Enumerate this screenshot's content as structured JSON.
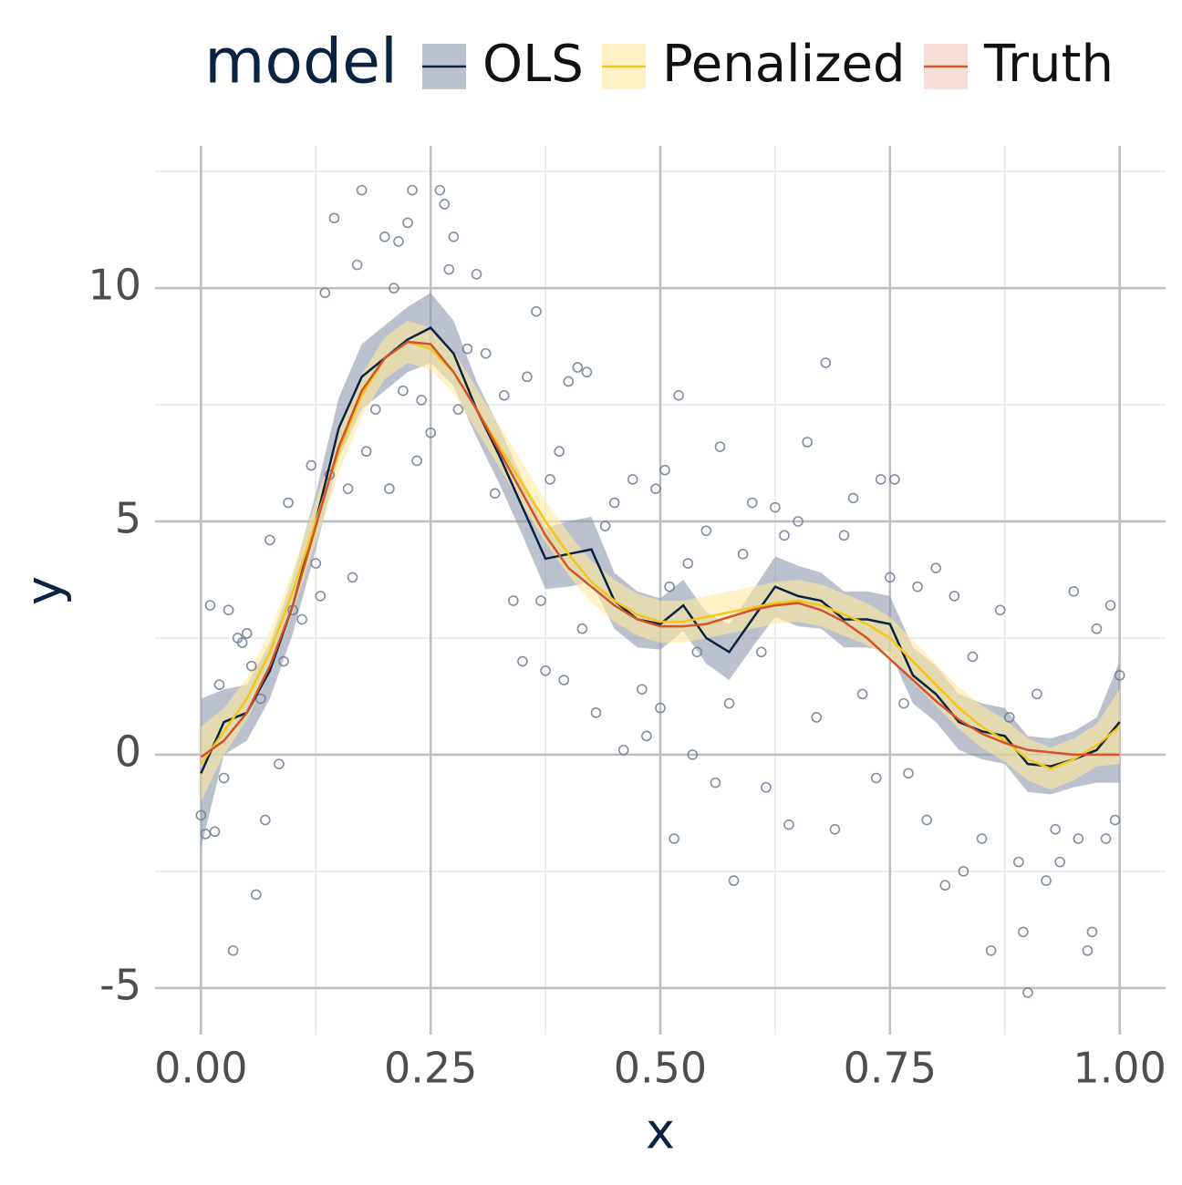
{
  "chart_data": {
    "type": "line",
    "x_label": "x",
    "y_label": "y",
    "legend_title": "model",
    "legend_position": "top",
    "grid": true,
    "xlim": [
      -0.05,
      1.05
    ],
    "ylim": [
      -6.0,
      13.05
    ],
    "xticks": [
      {
        "value": 0,
        "label": "0.00"
      },
      {
        "value": 0.25,
        "label": "0.25"
      },
      {
        "value": 0.5,
        "label": "0.50"
      },
      {
        "value": 0.75,
        "label": "0.75"
      },
      {
        "value": 1,
        "label": "1.00"
      }
    ],
    "yticks": [
      -5,
      0,
      5,
      10
    ],
    "x_minor_ticks": [
      0.125,
      0.375,
      0.625,
      0.875
    ],
    "y_minor_ticks": [
      -2.5,
      2.5,
      7.5,
      12.5
    ],
    "x": [
      0,
      0.025,
      0.05,
      0.075,
      0.1,
      0.125,
      0.15,
      0.175,
      0.2,
      0.225,
      0.25,
      0.275,
      0.3,
      0.325,
      0.35,
      0.375,
      0.4,
      0.425,
      0.45,
      0.475,
      0.5,
      0.525,
      0.55,
      0.575,
      0.6,
      0.625,
      0.65,
      0.675,
      0.7,
      0.725,
      0.75,
      0.775,
      0.8,
      0.825,
      0.85,
      0.875,
      0.9,
      0.925,
      0.95,
      0.975,
      1
    ],
    "series": [
      {
        "name": "OLS",
        "color": "#0a2342",
        "band_color": "#8d99ae",
        "values": [
          -0.4,
          0.7,
          0.9,
          1.8,
          3.2,
          5.0,
          7.0,
          8.1,
          8.5,
          8.9,
          9.15,
          8.6,
          7.4,
          6.4,
          5.3,
          4.2,
          4.3,
          4.4,
          3.3,
          2.9,
          2.8,
          3.2,
          2.5,
          2.2,
          2.9,
          3.6,
          3.4,
          3.3,
          2.9,
          2.9,
          2.8,
          1.7,
          1.3,
          0.7,
          0.5,
          0.4,
          -0.2,
          -0.25,
          -0.1,
          0.1,
          0.7
        ],
        "lower": [
          -2.0,
          0.0,
          0.3,
          1.2,
          2.6,
          4.4,
          6.35,
          7.4,
          7.8,
          8.2,
          8.4,
          7.9,
          6.8,
          5.8,
          4.7,
          3.55,
          3.6,
          3.7,
          2.7,
          2.3,
          2.25,
          2.65,
          1.95,
          1.6,
          2.3,
          2.95,
          2.75,
          2.7,
          2.3,
          2.3,
          2.2,
          1.1,
          0.7,
          0.1,
          -0.1,
          -0.2,
          -0.8,
          -0.85,
          -0.7,
          -0.6,
          -0.6
        ],
        "upper": [
          1.2,
          1.4,
          1.5,
          2.4,
          3.8,
          5.6,
          7.65,
          8.8,
          9.2,
          9.6,
          9.9,
          9.3,
          8.0,
          7.0,
          5.9,
          4.85,
          5.0,
          5.1,
          3.9,
          3.5,
          3.35,
          3.75,
          3.05,
          2.8,
          3.5,
          4.25,
          4.05,
          3.9,
          3.5,
          3.5,
          3.4,
          2.3,
          1.9,
          1.3,
          1.1,
          1.0,
          0.4,
          0.35,
          0.5,
          0.8,
          2.0
        ]
      },
      {
        "name": "Penalized",
        "color": "#f5c518",
        "band_color": "#fde9a0",
        "values": [
          -0.2,
          0.5,
          1.2,
          2.2,
          3.5,
          5.0,
          6.5,
          7.7,
          8.5,
          8.85,
          8.7,
          8.2,
          7.4,
          6.6,
          5.8,
          5.0,
          4.3,
          3.7,
          3.3,
          3.0,
          2.85,
          2.85,
          2.95,
          3.05,
          3.15,
          3.25,
          3.3,
          3.2,
          3.0,
          2.8,
          2.5,
          2.0,
          1.5,
          1.0,
          0.6,
          0.3,
          -0.1,
          -0.3,
          -0.1,
          0.2,
          0.6
        ],
        "lower": [
          -1.0,
          0.0,
          0.75,
          1.75,
          3.05,
          4.55,
          6.05,
          7.25,
          8.05,
          8.4,
          8.25,
          7.75,
          6.95,
          6.15,
          5.35,
          4.55,
          3.85,
          3.25,
          2.85,
          2.55,
          2.4,
          2.4,
          2.5,
          2.6,
          2.7,
          2.8,
          2.85,
          2.75,
          2.55,
          2.35,
          2.05,
          1.55,
          1.05,
          0.55,
          0.15,
          -0.15,
          -0.55,
          -0.75,
          -0.55,
          -0.25,
          -0.2
        ],
        "upper": [
          0.6,
          1.0,
          1.65,
          2.65,
          3.95,
          5.45,
          6.95,
          8.15,
          8.95,
          9.3,
          9.15,
          8.65,
          7.85,
          7.05,
          6.25,
          5.45,
          4.75,
          4.15,
          3.75,
          3.45,
          3.3,
          3.3,
          3.4,
          3.5,
          3.6,
          3.7,
          3.75,
          3.65,
          3.45,
          3.25,
          2.95,
          2.45,
          1.95,
          1.45,
          1.05,
          0.75,
          0.35,
          0.15,
          0.35,
          0.65,
          1.4
        ]
      },
      {
        "name": "Truth",
        "color": "#d2522b",
        "band_color": "#efcabd",
        "values": [
          -0.05,
          0.3,
          0.9,
          1.9,
          3.2,
          4.9,
          6.6,
          7.8,
          8.5,
          8.85,
          8.8,
          8.2,
          7.4,
          6.5,
          5.6,
          4.7,
          4.0,
          3.6,
          3.2,
          2.9,
          2.75,
          2.75,
          2.8,
          2.95,
          3.1,
          3.2,
          3.25,
          3.1,
          2.85,
          2.5,
          2.05,
          1.6,
          1.15,
          0.75,
          0.45,
          0.25,
          0.1,
          0.05,
          0.0,
          0.0,
          0.0
        ]
      }
    ],
    "scatter": {
      "color": "#6b7a90",
      "x": [
        0.0,
        0.005,
        0.01,
        0.015,
        0.02,
        0.025,
        0.03,
        0.035,
        0.04,
        0.045,
        0.05,
        0.055,
        0.06,
        0.065,
        0.07,
        0.075,
        0.085,
        0.09,
        0.095,
        0.1,
        0.11,
        0.12,
        0.125,
        0.13,
        0.135,
        0.14,
        0.145,
        0.16,
        0.165,
        0.17,
        0.175,
        0.18,
        0.19,
        0.2,
        0.205,
        0.21,
        0.215,
        0.22,
        0.225,
        0.23,
        0.235,
        0.24,
        0.25,
        0.26,
        0.265,
        0.27,
        0.275,
        0.28,
        0.29,
        0.3,
        0.31,
        0.32,
        0.33,
        0.34,
        0.35,
        0.355,
        0.365,
        0.37,
        0.375,
        0.38,
        0.39,
        0.395,
        0.4,
        0.41,
        0.415,
        0.42,
        0.43,
        0.44,
        0.45,
        0.46,
        0.47,
        0.48,
        0.485,
        0.495,
        0.5,
        0.505,
        0.51,
        0.515,
        0.52,
        0.53,
        0.535,
        0.54,
        0.55,
        0.56,
        0.565,
        0.575,
        0.58,
        0.59,
        0.6,
        0.61,
        0.615,
        0.625,
        0.635,
        0.64,
        0.65,
        0.66,
        0.67,
        0.68,
        0.69,
        0.7,
        0.71,
        0.72,
        0.735,
        0.74,
        0.75,
        0.755,
        0.765,
        0.77,
        0.78,
        0.79,
        0.8,
        0.81,
        0.82,
        0.83,
        0.84,
        0.85,
        0.86,
        0.87,
        0.88,
        0.89,
        0.895,
        0.9,
        0.91,
        0.92,
        0.93,
        0.935,
        0.95,
        0.955,
        0.965,
        0.97,
        0.975,
        0.985,
        0.99,
        0.995,
        1.0
      ],
      "y": [
        -1.3,
        -1.7,
        3.2,
        -1.65,
        1.5,
        -0.5,
        3.1,
        -4.2,
        2.5,
        2.4,
        2.6,
        1.9,
        -3.0,
        1.2,
        -1.4,
        4.6,
        -0.2,
        2.0,
        5.4,
        3.1,
        2.9,
        6.2,
        4.1,
        3.4,
        9.9,
        6.0,
        11.5,
        5.7,
        3.8,
        10.5,
        12.1,
        6.5,
        7.4,
        11.1,
        5.7,
        10.0,
        11.0,
        7.8,
        11.4,
        12.1,
        6.3,
        7.6,
        6.9,
        12.1,
        11.8,
        10.4,
        11.1,
        7.4,
        8.7,
        10.3,
        8.6,
        5.6,
        7.7,
        3.3,
        2.0,
        8.1,
        9.5,
        3.3,
        1.8,
        5.9,
        6.5,
        1.6,
        8.0,
        8.3,
        2.7,
        8.2,
        0.9,
        4.9,
        5.4,
        0.1,
        5.9,
        1.4,
        0.4,
        5.7,
        1.0,
        6.1,
        3.6,
        -1.8,
        7.7,
        4.1,
        0.0,
        2.2,
        4.8,
        -0.6,
        6.6,
        1.1,
        -2.7,
        4.3,
        5.4,
        2.2,
        -0.7,
        5.3,
        4.7,
        -1.5,
        5.0,
        6.7,
        0.8,
        8.4,
        -1.6,
        4.7,
        5.5,
        1.3,
        -0.5,
        5.9,
        3.8,
        5.9,
        1.1,
        -0.4,
        3.6,
        -1.4,
        4.0,
        -2.8,
        3.4,
        -2.5,
        2.1,
        -1.8,
        -4.2,
        3.1,
        0.8,
        -2.3,
        -3.8,
        -5.1,
        1.3,
        -2.7,
        -1.6,
        -2.3,
        3.5,
        -1.8,
        -4.2,
        -3.8,
        2.7,
        -1.8,
        3.2,
        -1.4,
        1.7
      ]
    }
  }
}
